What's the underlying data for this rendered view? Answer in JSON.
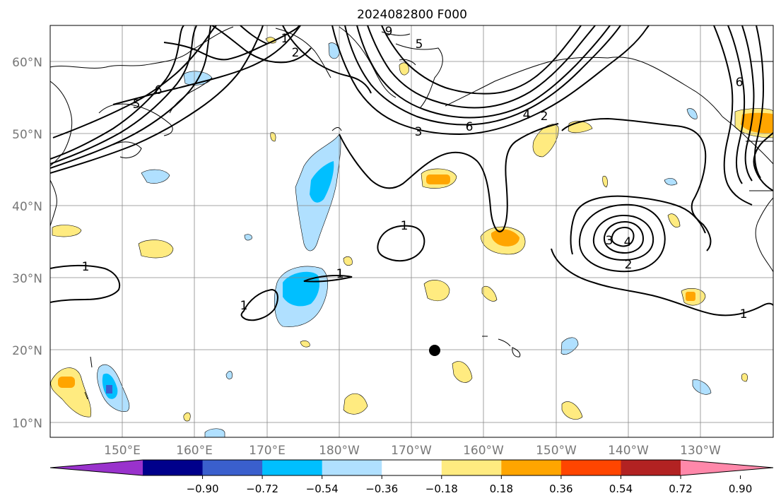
{
  "title": "2024082800 F000",
  "map": {
    "lat_labels": [
      "60°N",
      "50°N",
      "40°N",
      "30°N",
      "20°N",
      "10°N"
    ],
    "lon_labels": [
      "150°E",
      "160°E",
      "170°E",
      "180°W",
      "170°W",
      "160°W",
      "150°W",
      "140°W",
      "130°W"
    ],
    "contour_labels": [
      "1",
      "1",
      "1",
      "1",
      "1",
      "1",
      "2",
      "2",
      "2",
      "3",
      "3",
      "4",
      "4",
      "5",
      "5",
      "6",
      "6",
      "6",
      "9"
    ],
    "marker": "filled black circle",
    "colors": {
      "contour": "#000000",
      "gridline": "#888888",
      "land_outline": "#000000",
      "tick_label": "#777777"
    }
  },
  "colorbar": {
    "tick_labels": [
      "−0.90",
      "−0.72",
      "−0.54",
      "−0.36",
      "−0.18",
      "0.18",
      "0.36",
      "0.54",
      "0.72",
      "0.90"
    ],
    "colors": [
      "#9932cc",
      "#00008b",
      "#3a5fcd",
      "#00bfff",
      "#b0e0ff",
      "#ffffff",
      "#ffeb80",
      "#ffa500",
      "#ff4500",
      "#b22222",
      "#ff88aa"
    ]
  }
}
